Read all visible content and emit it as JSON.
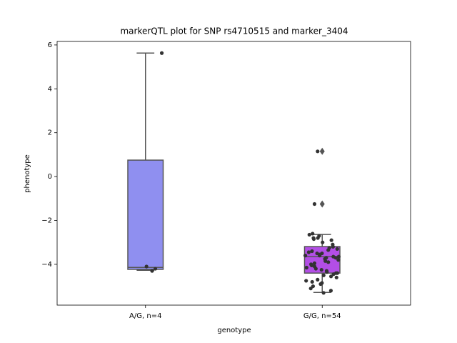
{
  "chart_data": {
    "type": "box",
    "title": "markerQTL plot for SNP rs4710515 and marker_3404",
    "x_label": "genotype",
    "y_label": "phenotype",
    "categories": [
      "A/G, n=4",
      "G/G, n=54"
    ],
    "boxes": [
      {
        "color": "#8f8ff0",
        "whislo": -4.27,
        "q1": -4.23,
        "med": -4.14,
        "q3": 0.75,
        "whishi": 5.63,
        "fliers": []
      },
      {
        "color": "#b34ee6",
        "whislo": -5.28,
        "q1": -4.4,
        "med": -3.65,
        "q3": -3.19,
        "whishi": -2.64,
        "fliers": [
          1.15,
          -1.25
        ]
      }
    ],
    "points": [
      [
        5.63,
        -4.1,
        -4.2,
        -4.3
      ],
      [
        1.15,
        -1.25,
        -2.6,
        -2.65,
        -2.7,
        -2.8,
        -2.8,
        -2.85,
        -2.9,
        -3.0,
        -3.1,
        -3.2,
        -3.25,
        -3.3,
        -3.35,
        -3.4,
        -3.45,
        -3.5,
        -3.5,
        -3.55,
        -3.6,
        -3.6,
        -3.65,
        -3.65,
        -3.7,
        -3.7,
        -3.75,
        -3.8,
        -3.85,
        -3.9,
        -3.95,
        -4.0,
        -4.05,
        -4.1,
        -4.15,
        -4.2,
        -4.25,
        -4.3,
        -4.35,
        -4.4,
        -4.4,
        -4.45,
        -4.5,
        -4.55,
        -4.6,
        -4.7,
        -4.75,
        -4.8,
        -4.85,
        -4.9,
        -5.0,
        -5.1,
        -5.2,
        -5.3
      ]
    ],
    "point_color": "#333333",
    "ylim": [
      -5.86,
      6.16
    ],
    "yticks": [
      {
        "value": -4,
        "label": "−4"
      },
      {
        "value": -2,
        "label": "−2"
      },
      0,
      2,
      4,
      6
    ]
  }
}
